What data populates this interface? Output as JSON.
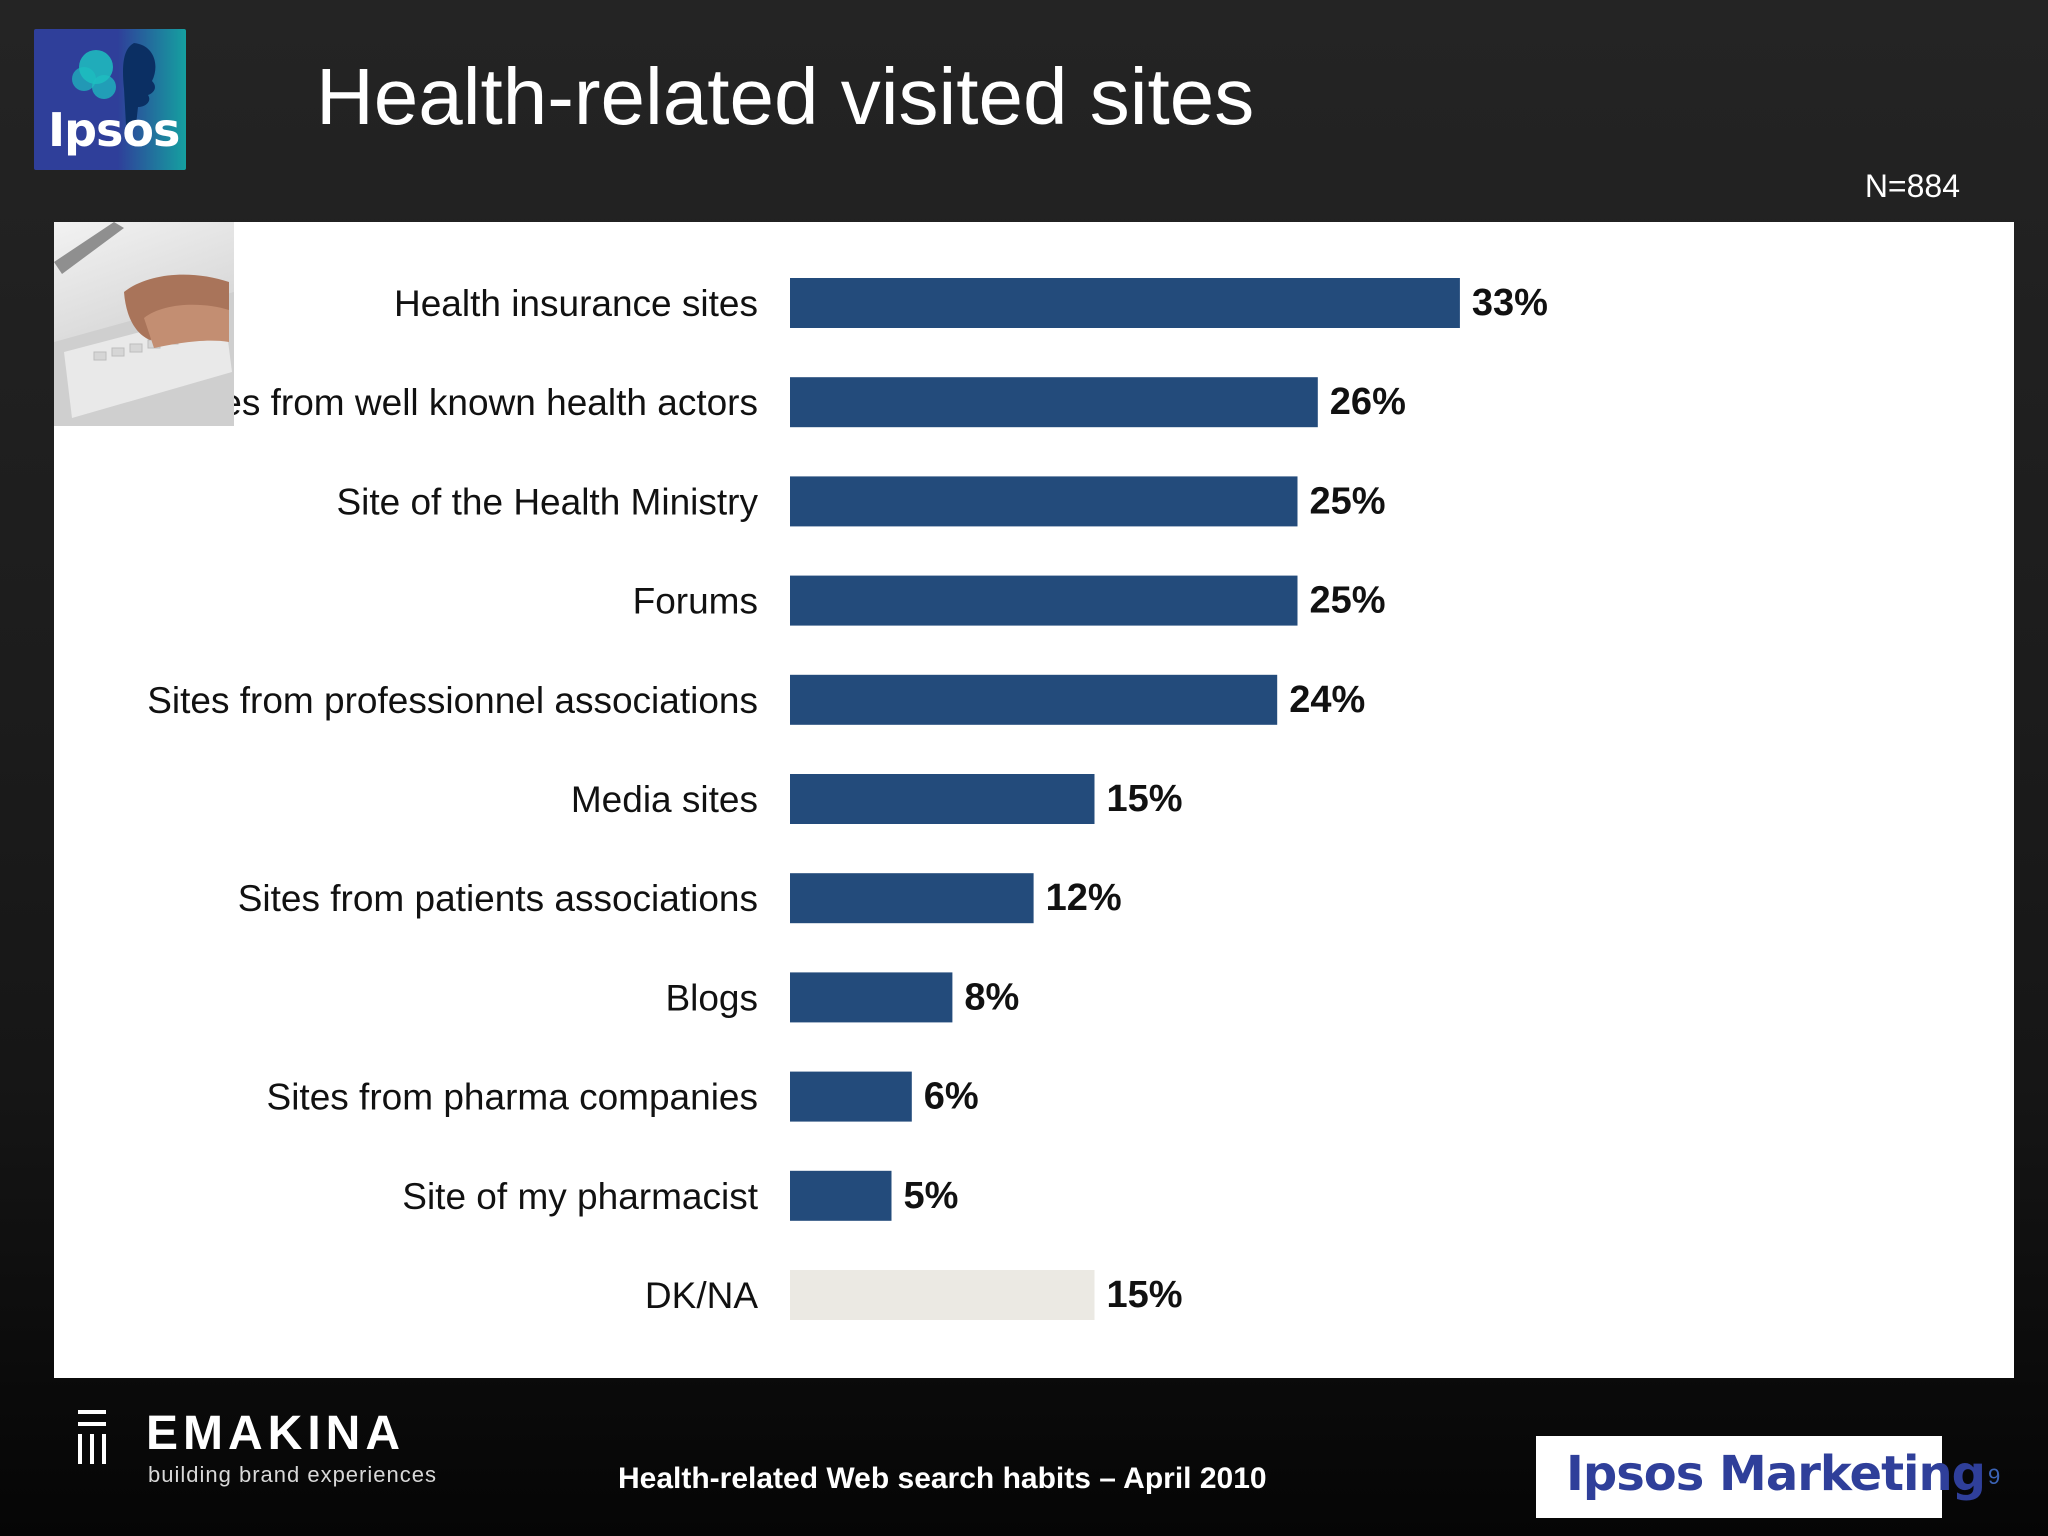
{
  "slide": {
    "title": "Health-related visited sites",
    "sample_size": "N=884",
    "logo_text": "Ipsos",
    "footer_brand_name": "EMAKINA",
    "footer_brand_tagline": "building brand experiences",
    "footer_title": "Health-related Web search habits – April 2010",
    "footer_logo": "Ipsos Marketing",
    "page_number": "9"
  },
  "colors": {
    "bar": "#234b7b",
    "bar_dk": "#ebe9e3",
    "panel": "#ffffff",
    "label": "#111111"
  },
  "chart_data": {
    "type": "bar",
    "orientation": "horizontal",
    "categories": [
      "Health insurance sites",
      "Sites from well known health actors",
      "Site of the Health Ministry",
      "Forums",
      "Sites from professionnel associations",
      "Media sites",
      "Sites from patients associations",
      "Blogs",
      "Sites from pharma companies",
      "Site of my pharmacist",
      "DK/NA"
    ],
    "values": [
      33,
      26,
      25,
      25,
      24,
      15,
      12,
      8,
      6,
      5,
      15
    ],
    "value_labels": [
      "33%",
      "26%",
      "25%",
      "25%",
      "24%",
      "15%",
      "12%",
      "8%",
      "6%",
      "5%",
      "15%"
    ],
    "unit": "%",
    "highlight_last_category": "DK/NA",
    "title": "",
    "xlabel": "",
    "ylabel": "",
    "xlim": [
      0,
      60
    ],
    "grid": false,
    "legend": "none"
  }
}
